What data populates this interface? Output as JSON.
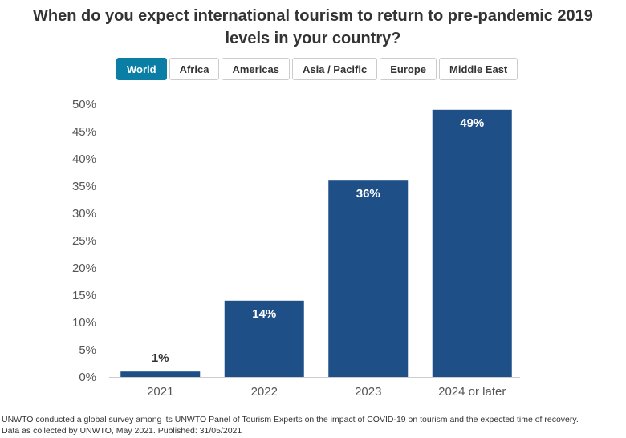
{
  "title_line1": "When do you expect international tourism to return to pre-pandemic 2019",
  "title_line2": "levels in your country?",
  "tabs": [
    {
      "label": "World",
      "active": true
    },
    {
      "label": "Africa"
    },
    {
      "label": "Americas"
    },
    {
      "label": "Asia / Pacific"
    },
    {
      "label": "Europe"
    },
    {
      "label": "Middle East"
    }
  ],
  "colors": {
    "bar": "#1f4f87",
    "active_tab": "#0a7ea4"
  },
  "chart_data": {
    "type": "bar",
    "categories": [
      "2021",
      "2022",
      "2023",
      "2024 or later"
    ],
    "values": [
      1,
      14,
      36,
      49
    ],
    "data_labels": [
      "1%",
      "14%",
      "36%",
      "49%"
    ],
    "ylim": [
      0,
      50
    ],
    "yticks": [
      "0%",
      "5%",
      "10%",
      "15%",
      "20%",
      "25%",
      "30%",
      "35%",
      "40%",
      "45%",
      "50%"
    ],
    "xlabel": "",
    "ylabel": "",
    "grid": false
  },
  "footer": {
    "line1": "UNWTO conducted a global survey among its UNWTO Panel of Tourism Experts on the impact of COVID-19 on tourism and the expected time of recovery.",
    "line2": "Data as collected by UNWTO, May 2021. Published: 31/05/2021"
  }
}
